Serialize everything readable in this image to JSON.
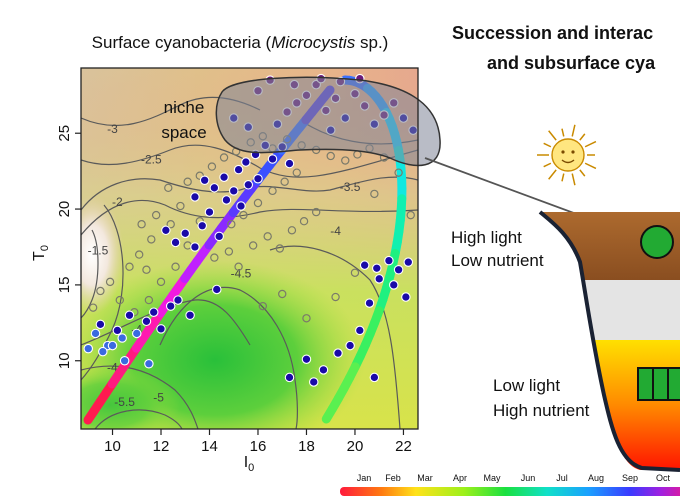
{
  "plot": {
    "title_main": "Surface cyanobacteria (",
    "title_italic": "Microcystis",
    "title_end": " sp.)",
    "xlabel": "I",
    "xlabel_sub": "0",
    "ylabel": "T",
    "ylabel_sub": "0",
    "niche_label_line1": "niche",
    "niche_label_line2": "space"
  },
  "diagram": {
    "title_line1": "Succession and interac",
    "title_line2": "and subsurface cya",
    "high_light": "High light",
    "low_nutrient": "Low nutrient",
    "low_light": "Low light",
    "high_nutrient": "High nutrient"
  },
  "colors": {
    "water_top": "#9a5a26",
    "water_mid": "#e6e6e6",
    "water_bottom_warm": "#ff2a00",
    "water_bottom_yellow": "#ffe000",
    "cell": "#22aa33",
    "point_dark": "#1a0aa8",
    "point_grey": "#7a7a6a",
    "niche_fill": "#8a8fa0"
  },
  "month_bar": {
    "labels": [
      "Jan",
      "Feb",
      "Mar",
      "Apr",
      "May",
      "Jun",
      "Jul",
      "Aug",
      "Sep",
      "Oct"
    ]
  },
  "chart_data": {
    "type": "scatter",
    "title": "Surface cyanobacteria (Microcystis sp.)",
    "xlabel": "I0",
    "ylabel": "T0",
    "xlim": [
      8.7,
      22.6
    ],
    "ylim": [
      5.5,
      29.3
    ],
    "xticks": [
      10,
      12,
      14,
      16,
      18,
      20,
      22
    ],
    "yticks": [
      10,
      15,
      20,
      25
    ],
    "contour_labels": [
      {
        "x": 10.0,
        "y": 25.0,
        "text": "-3"
      },
      {
        "x": 11.6,
        "y": 23.0,
        "text": "-2.5"
      },
      {
        "x": 10.2,
        "y": 20.2,
        "text": "-2"
      },
      {
        "x": 9.4,
        "y": 17.0,
        "text": "-1.5"
      },
      {
        "x": 19.8,
        "y": 21.2,
        "text": "-3.5"
      },
      {
        "x": 19.2,
        "y": 18.3,
        "text": "-4"
      },
      {
        "x": 15.3,
        "y": 15.5,
        "text": "-4.5"
      },
      {
        "x": 11.0,
        "y": 11.8,
        "text": "-4"
      },
      {
        "x": 10.2,
        "y": 9.3,
        "text": "-4.5"
      },
      {
        "x": 10.5,
        "y": 7.0,
        "text": "-5.5"
      },
      {
        "x": 11.9,
        "y": 7.3,
        "text": "-5"
      }
    ],
    "series": [
      {
        "values": [
          [
            9.0,
            10.8
          ],
          [
            9.3,
            11.8
          ],
          [
            9.5,
            12.4
          ],
          [
            9.8,
            11.0
          ],
          [
            10.2,
            12.0
          ],
          [
            10.4,
            11.5
          ],
          [
            10.7,
            13.0
          ],
          [
            11.0,
            11.8
          ],
          [
            11.4,
            12.6
          ],
          [
            11.7,
            13.2
          ],
          [
            12.0,
            12.1
          ],
          [
            12.4,
            13.6
          ],
          [
            12.7,
            14.0
          ],
          [
            12.2,
            18.6
          ],
          [
            12.6,
            17.8
          ],
          [
            13.0,
            18.4
          ],
          [
            13.4,
            17.5
          ],
          [
            13.7,
            18.9
          ],
          [
            14.0,
            19.8
          ],
          [
            14.4,
            18.2
          ],
          [
            14.7,
            20.6
          ],
          [
            15.0,
            21.2
          ],
          [
            15.3,
            20.2
          ],
          [
            15.6,
            21.6
          ],
          [
            13.4,
            20.8
          ],
          [
            13.8,
            21.9
          ],
          [
            14.2,
            21.4
          ],
          [
            14.6,
            22.1
          ],
          [
            15.2,
            22.6
          ],
          [
            15.5,
            23.1
          ],
          [
            15.9,
            23.6
          ],
          [
            16.3,
            24.2
          ],
          [
            16.6,
            23.3
          ],
          [
            17.0,
            24.1
          ],
          [
            17.3,
            23.0
          ],
          [
            16.0,
            22.0
          ],
          [
            16.8,
            25.6
          ],
          [
            17.2,
            26.4
          ],
          [
            17.6,
            27.0
          ],
          [
            18.0,
            27.5
          ],
          [
            18.4,
            28.2
          ],
          [
            18.8,
            26.5
          ],
          [
            19.2,
            27.3
          ],
          [
            19.6,
            26.0
          ],
          [
            20.0,
            27.6
          ],
          [
            20.4,
            26.8
          ],
          [
            20.8,
            25.6
          ],
          [
            21.2,
            26.2
          ],
          [
            21.6,
            27.0
          ],
          [
            22.0,
            26.0
          ],
          [
            22.4,
            25.2
          ],
          [
            16.0,
            27.8
          ],
          [
            16.5,
            28.5
          ],
          [
            17.5,
            28.2
          ],
          [
            18.6,
            28.6
          ],
          [
            19.4,
            28.4
          ],
          [
            20.2,
            28.6
          ],
          [
            15.0,
            26.0
          ],
          [
            15.6,
            25.4
          ],
          [
            19.0,
            25.2
          ],
          [
            20.4,
            16.3
          ],
          [
            20.9,
            16.1
          ],
          [
            21.4,
            16.6
          ],
          [
            21.8,
            16.0
          ],
          [
            22.2,
            16.5
          ],
          [
            21.0,
            15.4
          ],
          [
            21.6,
            15.0
          ],
          [
            22.1,
            14.2
          ],
          [
            20.6,
            13.8
          ],
          [
            20.2,
            12.0
          ],
          [
            19.8,
            11.0
          ],
          [
            19.3,
            10.5
          ],
          [
            18.7,
            9.4
          ],
          [
            18.3,
            8.6
          ],
          [
            18.0,
            10.1
          ],
          [
            20.8,
            8.9
          ],
          [
            17.3,
            8.9
          ],
          [
            11.5,
            9.8
          ],
          [
            10.5,
            10.0
          ],
          [
            10.0,
            11.0
          ],
          [
            9.6,
            10.6
          ],
          [
            14.3,
            14.7
          ],
          [
            13.2,
            13.0
          ]
        ]
      },
      {
        "values": [
          [
            9.2,
            13.5
          ],
          [
            9.5,
            14.6
          ],
          [
            9.9,
            15.2
          ],
          [
            10.3,
            14.0
          ],
          [
            10.7,
            16.2
          ],
          [
            11.1,
            17.0
          ],
          [
            11.4,
            16.0
          ],
          [
            11.6,
            18.0
          ],
          [
            11.2,
            19.0
          ],
          [
            11.8,
            19.6
          ],
          [
            12.4,
            19.0
          ],
          [
            12.8,
            20.2
          ],
          [
            12.3,
            21.4
          ],
          [
            13.1,
            21.8
          ],
          [
            13.6,
            22.2
          ],
          [
            14.1,
            22.8
          ],
          [
            14.6,
            23.4
          ],
          [
            15.1,
            23.8
          ],
          [
            15.7,
            24.4
          ],
          [
            16.2,
            24.8
          ],
          [
            16.6,
            24.0
          ],
          [
            17.2,
            24.6
          ],
          [
            17.8,
            24.2
          ],
          [
            18.4,
            23.9
          ],
          [
            19.0,
            23.5
          ],
          [
            19.6,
            23.2
          ],
          [
            20.1,
            23.6
          ],
          [
            20.6,
            24.0
          ],
          [
            21.2,
            23.4
          ],
          [
            14.2,
            16.8
          ],
          [
            14.8,
            17.2
          ],
          [
            15.2,
            16.2
          ],
          [
            15.8,
            17.6
          ],
          [
            16.4,
            18.2
          ],
          [
            16.9,
            17.4
          ],
          [
            17.4,
            18.6
          ],
          [
            17.9,
            19.2
          ],
          [
            18.4,
            19.8
          ],
          [
            16.0,
            20.4
          ],
          [
            16.6,
            21.2
          ],
          [
            17.1,
            21.8
          ],
          [
            17.6,
            22.4
          ],
          [
            14.9,
            19.0
          ],
          [
            15.4,
            19.6
          ],
          [
            13.6,
            19.2
          ],
          [
            13.1,
            17.6
          ],
          [
            12.6,
            16.2
          ],
          [
            12.0,
            15.2
          ],
          [
            11.5,
            14.0
          ],
          [
            10.9,
            13.2
          ],
          [
            16.2,
            13.6
          ],
          [
            17.0,
            14.4
          ],
          [
            18.0,
            12.8
          ],
          [
            19.2,
            14.2
          ],
          [
            20.0,
            15.8
          ],
          [
            22.3,
            19.6
          ],
          [
            21.8,
            22.4
          ],
          [
            20.8,
            21.0
          ]
        ]
      }
    ]
  }
}
